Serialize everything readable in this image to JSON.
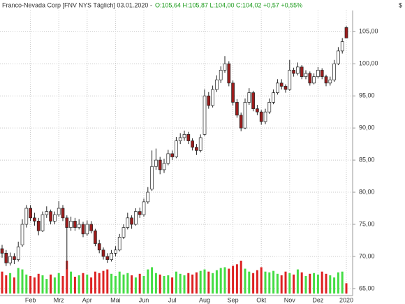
{
  "chart_data": {
    "type": "candlestick",
    "title": "Franco-Nevada Corp [FNV NYS  Täglich] 03.01.2020 -",
    "quote": "O:105,64 H:105,87 L:104,00 C:104,02 +0,57 +0,55%",
    "y_axis_label": "$",
    "ylim": [
      63.9,
      108.3
    ],
    "yticks": [
      {
        "value": 65,
        "label": "65,00"
      },
      {
        "value": 70,
        "label": "70,00"
      },
      {
        "value": 75,
        "label": "75,00"
      },
      {
        "value": 80,
        "label": "80,00"
      },
      {
        "value": 85,
        "label": "85,00"
      },
      {
        "value": 90,
        "label": "90,00"
      },
      {
        "value": 95,
        "label": "95,00"
      },
      {
        "value": 100,
        "label": "100,00"
      },
      {
        "value": 105,
        "label": "105,00"
      }
    ],
    "grid": true,
    "up_color": "#ffffff",
    "down_color": "#9b1c1c",
    "volume_up_color": "#44dd44",
    "volume_down_color": "#dd2222",
    "categories": [
      null,
      null,
      null,
      null,
      null,
      null,
      null,
      "Feb",
      null,
      null,
      null,
      null,
      null,
      null,
      "Mrz",
      null,
      null,
      null,
      null,
      null,
      null,
      "Apr",
      null,
      null,
      null,
      null,
      null,
      null,
      "Mai",
      null,
      null,
      null,
      null,
      null,
      null,
      "Jun",
      null,
      null,
      null,
      null,
      null,
      null,
      "Jul",
      null,
      null,
      null,
      null,
      null,
      null,
      null,
      "Aug",
      null,
      null,
      null,
      null,
      null,
      null,
      "Sep",
      null,
      null,
      null,
      null,
      null,
      null,
      "Okt",
      null,
      null,
      null,
      null,
      null,
      null,
      "Nov",
      null,
      null,
      null,
      null,
      null,
      null,
      "Dez",
      null,
      null,
      null,
      null,
      null,
      null,
      "2020"
    ],
    "ohlc": [
      [
        71.2,
        71.8,
        69.8,
        70.5
      ],
      [
        70.5,
        71,
        68.5,
        69
      ],
      [
        69,
        70.6,
        68.6,
        70
      ],
      [
        70,
        70.5,
        68.8,
        69.5
      ],
      [
        69.5,
        72.3,
        69.2,
        71.5
      ],
      [
        71.8,
        75.8,
        71.5,
        75
      ],
      [
        75,
        78,
        74.5,
        77.5
      ],
      [
        77.5,
        78,
        75.5,
        76
      ],
      [
        76,
        76.8,
        74.8,
        75.5
      ],
      [
        75.5,
        76,
        73.3,
        74
      ],
      [
        74,
        77,
        73.8,
        76.5
      ],
      [
        76.5,
        77.8,
        76,
        77
      ],
      [
        77,
        77.3,
        75,
        75.5
      ],
      [
        75.5,
        77,
        75,
        76.5
      ],
      [
        76.5,
        78.6,
        76.2,
        77.5
      ],
      [
        77.5,
        78,
        75.5,
        76
      ],
      [
        76,
        76.4,
        68,
        74.5
      ],
      [
        74.5,
        76.2,
        74,
        75.5
      ],
      [
        75.5,
        76,
        74,
        74.5
      ],
      [
        74.5,
        75.8,
        74.2,
        75
      ],
      [
        75,
        75.4,
        73,
        73.5
      ],
      [
        73.5,
        75.6,
        73.2,
        75
      ],
      [
        75,
        75.5,
        73.6,
        74
      ],
      [
        74,
        74.3,
        71.6,
        72
      ],
      [
        72,
        72.6,
        70.5,
        71
      ],
      [
        71,
        71.4,
        69.5,
        70
      ],
      [
        70,
        70.5,
        69,
        69.5
      ],
      [
        69.5,
        71,
        69.2,
        70.5
      ],
      [
        70.5,
        71.6,
        70,
        71
      ],
      [
        71,
        73.5,
        70.8,
        73
      ],
      [
        73,
        75,
        72.7,
        74.5
      ],
      [
        74.5,
        76.8,
        74.2,
        76
      ],
      [
        76,
        76.4,
        74.3,
        75
      ],
      [
        75,
        77.5,
        74.8,
        77
      ],
      [
        77,
        77.6,
        76,
        76.5
      ],
      [
        76.5,
        79,
        76.2,
        78.5
      ],
      [
        78.5,
        80.8,
        78.2,
        80
      ],
      [
        80.5,
        86.5,
        80.2,
        84
      ],
      [
        84,
        86.8,
        83.5,
        85
      ],
      [
        85,
        85.5,
        82.8,
        83.5
      ],
      [
        83.5,
        85.2,
        83,
        84.5
      ],
      [
        84.5,
        86.6,
        84.2,
        86
      ],
      [
        86,
        86.5,
        85,
        85.5
      ],
      [
        85.5,
        88.6,
        85.3,
        88
      ],
      [
        88,
        89.2,
        87.5,
        88.5
      ],
      [
        88.5,
        89.6,
        88,
        89
      ],
      [
        89,
        89.4,
        87.5,
        88
      ],
      [
        88,
        88.4,
        86.5,
        87
      ],
      [
        87,
        87.5,
        85.8,
        86.5
      ],
      [
        86.5,
        89,
        86.2,
        88.5
      ],
      [
        89,
        96,
        88.8,
        95
      ],
      [
        95,
        95.6,
        93,
        93.5
      ],
      [
        93.5,
        96.6,
        93.2,
        96
      ],
      [
        96,
        98.2,
        95.6,
        97.5
      ],
      [
        97.5,
        99.6,
        97,
        99
      ],
      [
        99,
        101.2,
        98.6,
        100
      ],
      [
        100,
        100.4,
        96.5,
        97
      ],
      [
        97,
        97.4,
        93.5,
        94
      ],
      [
        94,
        94.5,
        91.6,
        92
      ],
      [
        92,
        92.4,
        89.5,
        90
      ],
      [
        90,
        94.6,
        89.8,
        94
      ],
      [
        94,
        96.2,
        93.6,
        95.5
      ],
      [
        95.5,
        95.8,
        92.6,
        93
      ],
      [
        93,
        93.6,
        92,
        92.5
      ],
      [
        92.5,
        92.8,
        90.5,
        91
      ],
      [
        91,
        93,
        90.6,
        92.5
      ],
      [
        92.5,
        94.6,
        92.2,
        94
      ],
      [
        94,
        96,
        93.7,
        95.5
      ],
      [
        95.5,
        97.6,
        95.2,
        97
      ],
      [
        97,
        97.6,
        96,
        96.5
      ],
      [
        96.5,
        96.8,
        95.5,
        96
      ],
      [
        96,
        100.6,
        95.8,
        99
      ],
      [
        99,
        99.4,
        98,
        98.5
      ],
      [
        98.5,
        100.2,
        98.2,
        99.5
      ],
      [
        99.5,
        99.8,
        97.6,
        98
      ],
      [
        98,
        99,
        97.6,
        98.5
      ],
      [
        98.5,
        98.8,
        96.6,
        97
      ],
      [
        97,
        98.5,
        96.8,
        98
      ],
      [
        98,
        99.5,
        97.7,
        99
      ],
      [
        99,
        99.3,
        97.6,
        98
      ],
      [
        98,
        98.3,
        96.5,
        97
      ],
      [
        97,
        98,
        96.6,
        97.5
      ],
      [
        97.5,
        100.6,
        97.2,
        100
      ],
      [
        100,
        102.6,
        99.8,
        102
      ],
      [
        102,
        104,
        101.6,
        103.45
      ],
      [
        105.64,
        105.87,
        104,
        104.02
      ]
    ],
    "volume": [
      30,
      25,
      28,
      22,
      35,
      33,
      26,
      24,
      22,
      27,
      25,
      20,
      26,
      22,
      28,
      24,
      45,
      30,
      23,
      25,
      28,
      26,
      22,
      30,
      28,
      31,
      33,
      27,
      24,
      30,
      26,
      28,
      25,
      22,
      27,
      24,
      33,
      36,
      28,
      26,
      24,
      25,
      22,
      30,
      27,
      25,
      28,
      26,
      29,
      31,
      33,
      30,
      28,
      32,
      35,
      36,
      34,
      38,
      40,
      45,
      34,
      30,
      28,
      32,
      36,
      30,
      29,
      31,
      27,
      25,
      30,
      28,
      26,
      33,
      29,
      24,
      27,
      28,
      26,
      30,
      27,
      25,
      22,
      29,
      30,
      14
    ]
  }
}
